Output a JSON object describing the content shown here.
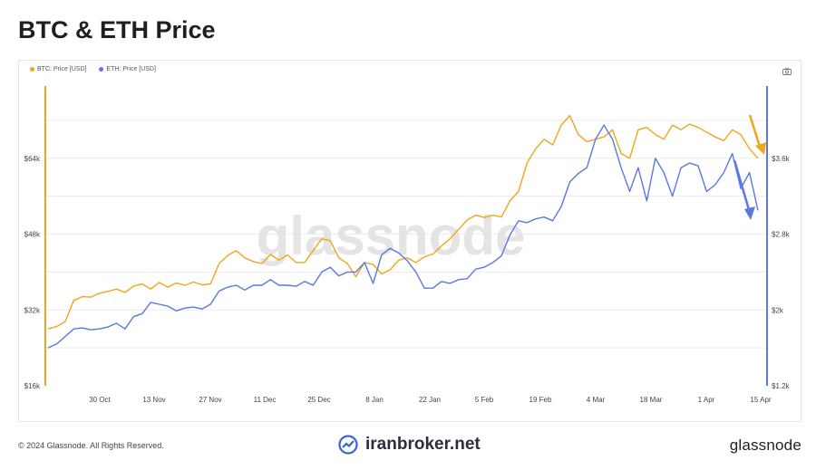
{
  "title": "BTC & ETH Price",
  "footer": {
    "copyright": "© 2024 Glassnode. All Rights Reserved.",
    "partner": "iranbroker.net",
    "logo_text": "glassnode"
  },
  "watermark": "glassnode",
  "colors": {
    "btc": "#f0a51c",
    "eth": "#5a78e0",
    "grid": "#ececec"
  },
  "icons": [
    "camera-icon",
    "chart-trend-icon"
  ],
  "chart_data": {
    "type": "line",
    "x_ticks": [
      "30 Oct",
      "13 Nov",
      "27 Nov",
      "11 Dec",
      "25 Dec",
      "8 Jan",
      "22 Jan",
      "5 Feb",
      "19 Feb",
      "4 Mar",
      "18 Mar",
      "1 Apr",
      "15 Apr"
    ],
    "y_left": {
      "ticks": [
        "$16k",
        "$32k",
        "$48k",
        "$64k"
      ],
      "range": [
        16000,
        80000
      ]
    },
    "y_right": {
      "ticks": [
        "$1.2k",
        "$2k",
        "$2.8k",
        "$3.6k"
      ],
      "range": [
        1200,
        4400
      ]
    },
    "series": [
      {
        "name": "BTC: Price [USD]",
        "axis": "left",
        "values": [
          28000,
          28500,
          29500,
          34000,
          34800,
          34700,
          35500,
          35900,
          36400,
          35700,
          37000,
          37500,
          36400,
          37800,
          36800,
          37700,
          37200,
          37900,
          37300,
          37500,
          41800,
          43500,
          44500,
          43000,
          42200,
          41800,
          43700,
          42500,
          43600,
          42000,
          42000,
          44500,
          47000,
          46600,
          43000,
          41800,
          39000,
          42000,
          41600,
          39600,
          40500,
          42500,
          43000,
          42000,
          43200,
          43800,
          45500,
          47000,
          49000,
          51000,
          52000,
          51500,
          52000,
          51600,
          55000,
          57000,
          63000,
          66000,
          68000,
          66800,
          71000,
          73000,
          69000,
          67500,
          68000,
          68500,
          70000,
          65000,
          64000,
          70000,
          70500,
          69000,
          68000,
          71000,
          70000,
          71200,
          70500,
          69500,
          68500,
          67700,
          70000,
          69000,
          66000,
          64000
        ]
      },
      {
        "name": "ETH: Price [USD]",
        "axis": "right",
        "values": [
          1600,
          1640,
          1720,
          1800,
          1810,
          1790,
          1800,
          1820,
          1860,
          1800,
          1930,
          1960,
          2080,
          2060,
          2040,
          1990,
          2020,
          2030,
          2010,
          2060,
          2200,
          2240,
          2260,
          2210,
          2260,
          2260,
          2320,
          2260,
          2260,
          2250,
          2300,
          2260,
          2400,
          2450,
          2360,
          2400,
          2400,
          2500,
          2280,
          2580,
          2650,
          2600,
          2520,
          2400,
          2230,
          2230,
          2300,
          2280,
          2320,
          2330,
          2430,
          2450,
          2500,
          2570,
          2790,
          2940,
          2920,
          2960,
          2980,
          2940,
          3090,
          3350,
          3440,
          3500,
          3800,
          3950,
          3800,
          3500,
          3250,
          3500,
          3150,
          3600,
          3450,
          3200,
          3500,
          3550,
          3520,
          3250,
          3320,
          3450,
          3650,
          3280,
          3450,
          3050
        ]
      }
    ]
  }
}
